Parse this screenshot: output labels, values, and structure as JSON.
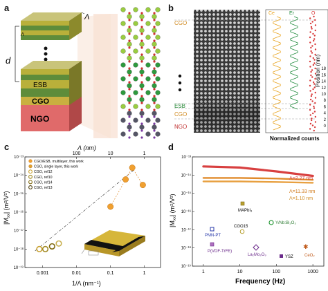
{
  "panels": {
    "a": {
      "label": "a",
      "lambda_label": "Λ",
      "d_label": "d",
      "layers": [
        "ESB",
        "CGO",
        "NGO"
      ]
    },
    "b": {
      "label": "b",
      "side_labels": [
        "CGO",
        "ESB",
        "CGO",
        "NGO"
      ],
      "profile_legend": [
        "Ce",
        "Er",
        "O"
      ],
      "profile_legend_colors": [
        "#e8a21a",
        "#1f8a3c",
        "#d83a3a"
      ],
      "xlabel": "Normalized counts",
      "ylabel": "Position (nm)",
      "y_ticks": [
        "0",
        "2",
        "4",
        "6",
        "8",
        "10",
        "12",
        "14",
        "16",
        "18"
      ]
    },
    "c": {
      "label": "c",
      "top_axis_label": "Λ (nm)",
      "top_ticks": [
        "100",
        "10",
        "1"
      ],
      "bottom_axis_label": "1/Λ (nm⁻¹)",
      "bottom_ticks": [
        "0.001",
        "0.01",
        "0.1",
        "1"
      ],
      "y_axis_label": "|M",
      "y_axis_sub": "xx",
      "y_axis_unit": "| (m²/V²)",
      "y_ticks": [
        "10⁻¹³",
        "10⁻¹⁴",
        "10⁻¹⁵",
        "10⁻¹⁶",
        "10⁻¹⁷",
        "10⁻¹⁸",
        "10⁻¹⁹"
      ],
      "legend": [
        "CGO/ESB, multilayer, this work",
        "CGO, single layer, this work",
        "CGO, ref12",
        "CGO, ref10",
        "CGO, ref14",
        "CGO, ref13"
      ]
    },
    "d": {
      "label": "d",
      "xlabel": "Frequency (Hz)",
      "x_ticks": [
        "1",
        "10",
        "100",
        "1000"
      ],
      "y_axis_label": "|M",
      "y_axis_sub": "xx",
      "y_axis_unit": "| (m²/V²)",
      "y_ticks": [
        "10⁻¹³",
        "10⁻¹⁴",
        "10⁻¹⁵",
        "10⁻¹⁶",
        "10⁻¹⁷",
        "10⁻¹⁸",
        "10⁻¹⁹"
      ],
      "curve_labels": [
        "Λ=2.27 nm",
        "Λ=11.33 nm",
        "Λ=1.10 nm"
      ],
      "curve_colors": [
        "#d84040",
        "#e08a2a",
        "#e8a040"
      ],
      "point_labels": [
        "MAPbI₃",
        "Y/Nb:Bi₂O₃",
        "PMN-PT",
        "CGO15",
        "P(VDF-TrFE)",
        "La₂Mo₂O₉",
        "YSZ",
        "CeO₂"
      ]
    }
  },
  "chart_data": [
    {
      "type": "scatter",
      "title": "",
      "xlabel": "1/Λ (nm⁻¹)",
      "ylabel": "|Mxx| (m²/V²)",
      "xscale": "log",
      "yscale": "log",
      "xlim": [
        0.0003,
        3
      ],
      "ylim": [
        1e-19,
        1e-13
      ],
      "series": [
        {
          "name": "CGO/ESB, multilayer, this work",
          "x": [
            0.1,
            0.28,
            0.44,
            0.9
          ],
          "y": [
            2e-16,
            6e-15,
            2.6e-14,
            3e-15
          ]
        },
        {
          "name": "CGO, single layer, this work",
          "x": [
            0.0008,
            0.0012,
            0.0019,
            0.003
          ],
          "y": [
            1e-18,
            1e-18,
            1.4e-18,
            2e-18
          ]
        }
      ]
    },
    {
      "type": "line",
      "title": "",
      "xlabel": "Frequency (Hz)",
      "ylabel": "|Mxx| (m²/V²)",
      "xscale": "log",
      "yscale": "log",
      "xlim": [
        0.5,
        2000
      ],
      "ylim": [
        1e-19,
        1e-13
      ],
      "series": [
        {
          "name": "Λ=2.27 nm",
          "x": [
            1,
            10,
            100,
            1000
          ],
          "y": [
            3e-14,
            2.6e-14,
            1.6e-14,
            9e-15
          ]
        },
        {
          "name": "Λ=11.33 nm",
          "x": [
            1,
            10,
            100,
            1000
          ],
          "y": [
            7e-15,
            7e-15,
            6.5e-15,
            5.5e-15
          ]
        },
        {
          "name": "Λ=1.10 nm",
          "x": [
            1,
            10,
            100,
            1000
          ],
          "y": [
            4.5e-15,
            4.5e-15,
            4.2e-15,
            3.8e-15
          ]
        }
      ]
    }
  ]
}
